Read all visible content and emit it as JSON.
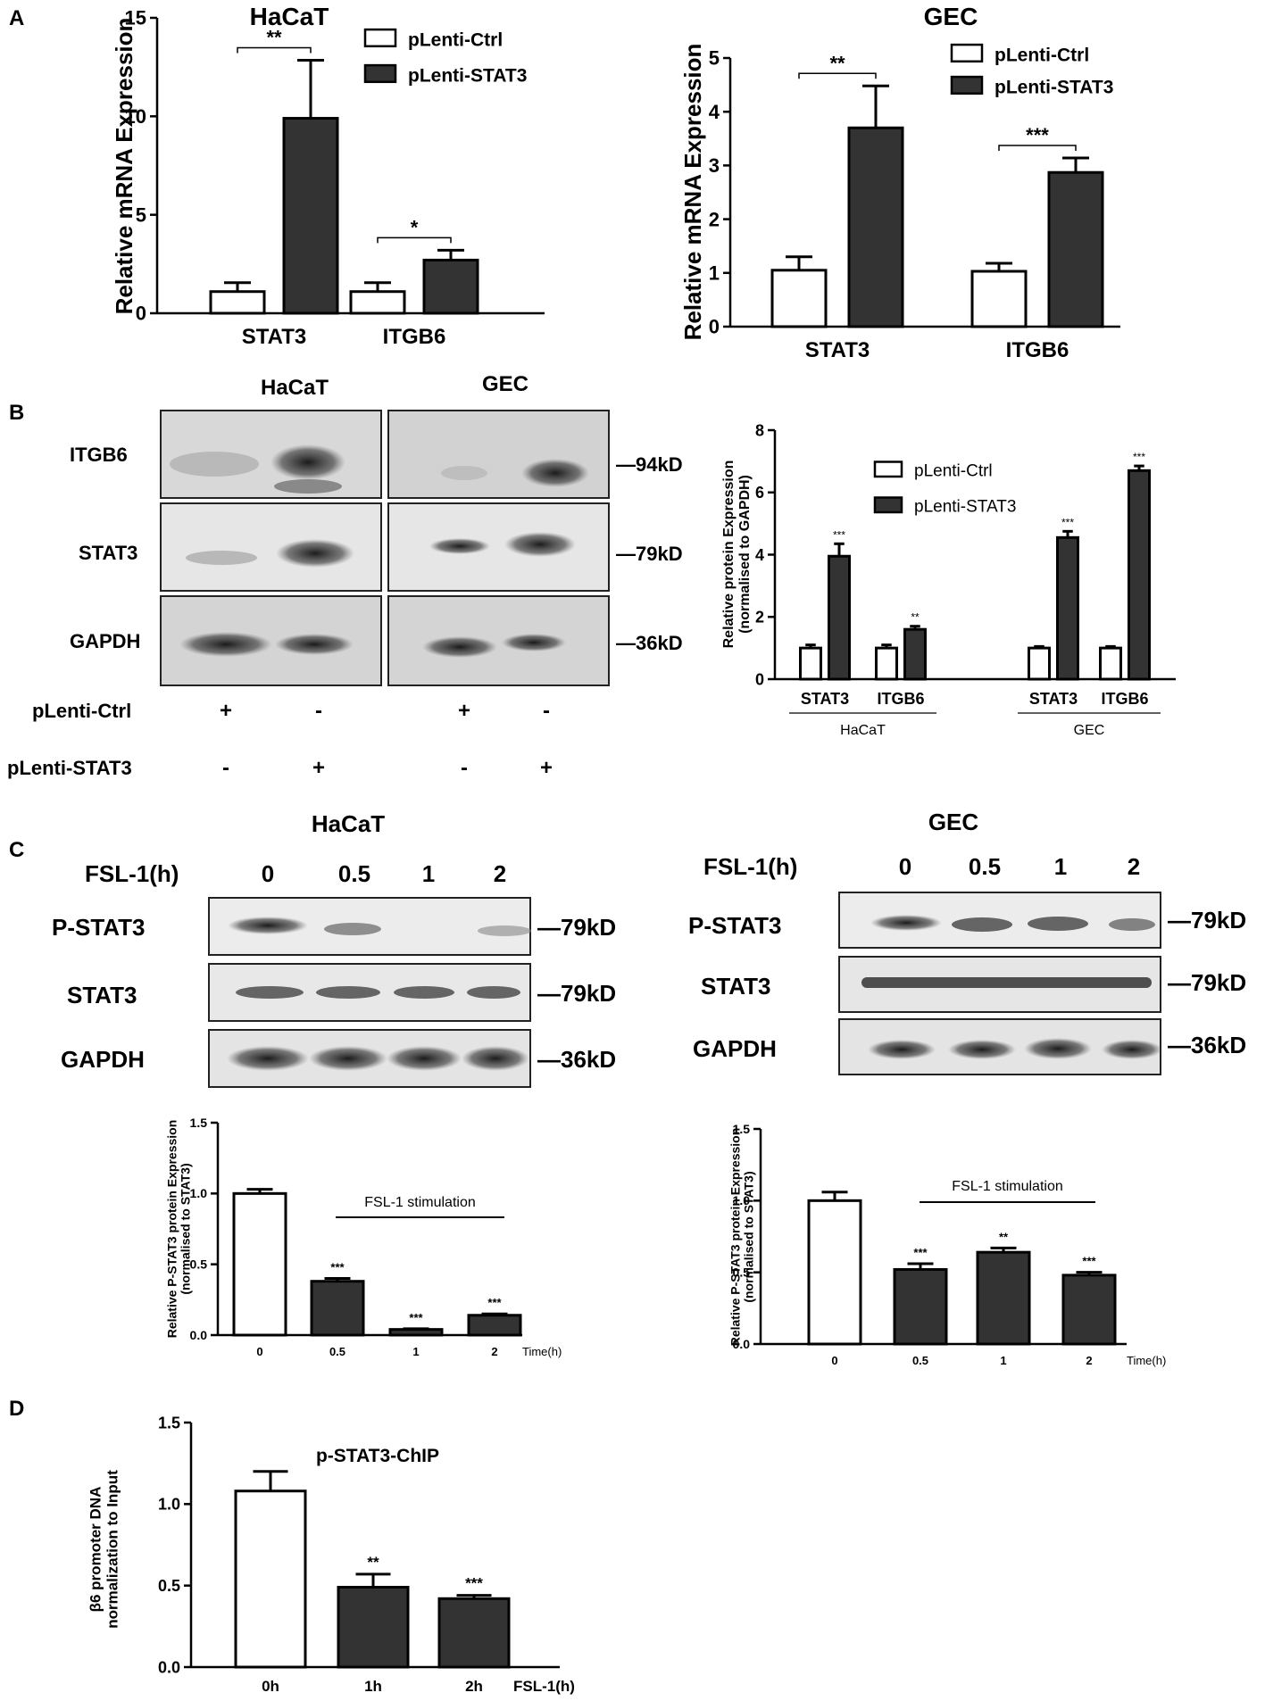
{
  "panel_labels": {
    "A": "A",
    "B": "B",
    "C": "C",
    "D": "D"
  },
  "panel_b": {
    "blot_title_left": "HaCaT",
    "blot_title_right": "GEC",
    "rows": [
      "ITGB6",
      "STAT3",
      "GAPDH"
    ],
    "weights": [
      "—94kD",
      "—79kD",
      "—36kD"
    ],
    "condition_labels": [
      "pLenti-Ctrl",
      "pLenti-STAT3"
    ],
    "ctrl_signs": [
      "+",
      "-",
      "+",
      "-"
    ],
    "stat3_signs": [
      "-",
      "+",
      "-",
      "+"
    ]
  },
  "panel_c": {
    "left": {
      "title": "HaCaT",
      "time_label": "FSL-1(h)",
      "times": [
        "0",
        "0.5",
        "1",
        "2"
      ],
      "rows": [
        "P-STAT3",
        "STAT3",
        "GAPDH"
      ],
      "weights": [
        "—79kD",
        "—79kD",
        "—36kD"
      ]
    },
    "right": {
      "title": "GEC",
      "time_label": "FSL-1(h)",
      "times": [
        "0",
        "0.5",
        "1",
        "2"
      ],
      "rows": [
        "P-STAT3",
        "STAT3",
        "GAPDH"
      ],
      "weights": [
        "—79kD",
        "—79kD",
        "—36kD"
      ]
    }
  },
  "colors": {
    "filled": "#333333",
    "empty": "#ffffff",
    "stroke": "#000000"
  },
  "chart_data": [
    {
      "id": "A-HaCaT",
      "type": "bar",
      "title": "HaCaT",
      "ylabel": "Relative  mRNA Expression",
      "xlabel": "",
      "categories": [
        "STAT3",
        "ITGB6"
      ],
      "series": [
        {
          "name": "pLenti-Ctrl",
          "values": [
            1.1,
            1.1
          ],
          "errors": [
            0.45,
            0.45
          ]
        },
        {
          "name": "pLenti-STAT3",
          "values": [
            9.9,
            2.7
          ],
          "errors": [
            2.95,
            0.5
          ]
        }
      ],
      "significance": [
        "**",
        "*"
      ],
      "ylim": [
        0,
        15
      ],
      "yticks": [
        "0",
        "5",
        "10",
        "15"
      ],
      "legend": "top-right"
    },
    {
      "id": "A-GEC",
      "type": "bar",
      "title": "GEC",
      "ylabel": "Relative  mRNA Expression",
      "xlabel": "",
      "categories": [
        "STAT3",
        "ITGB6"
      ],
      "series": [
        {
          "name": "pLenti-Ctrl",
          "values": [
            1.05,
            1.03
          ],
          "errors": [
            0.25,
            0.15
          ]
        },
        {
          "name": "pLenti-STAT3",
          "values": [
            3.7,
            2.87
          ],
          "errors": [
            0.78,
            0.27
          ]
        }
      ],
      "significance": [
        "**",
        "***"
      ],
      "ylim": [
        0,
        5
      ],
      "yticks": [
        "0",
        "1",
        "2",
        "3",
        "4",
        "5"
      ],
      "legend": "top-right"
    },
    {
      "id": "B-protein",
      "type": "bar",
      "title": "",
      "ylabel": "Relative protein Expression (normalised to GAPDH)",
      "xlabel": "",
      "categories": [
        "STAT3",
        "ITGB6",
        "STAT3",
        "ITGB6"
      ],
      "groups": [
        "HaCaT",
        "GEC"
      ],
      "series": [
        {
          "name": "pLenti-Ctrl",
          "values": [
            1.0,
            1.0,
            1.0,
            1.0
          ],
          "errors": [
            0.1,
            0.1,
            0.05,
            0.05
          ]
        },
        {
          "name": "pLenti-STAT3",
          "values": [
            3.95,
            1.6,
            4.55,
            6.7
          ],
          "errors": [
            0.4,
            0.1,
            0.2,
            0.15
          ]
        }
      ],
      "significance": [
        "***",
        "**",
        "***",
        "***"
      ],
      "ylim": [
        0,
        8
      ],
      "yticks": [
        "0",
        "2",
        "4",
        "6",
        "8"
      ],
      "legend": "top"
    },
    {
      "id": "C-HaCaT",
      "type": "bar",
      "title": "",
      "ylabel": "Relative P-STAT3 protein Expression (normalised to STAT3)",
      "xlabel": "Time(h)",
      "categories": [
        "0",
        "0.5",
        "1",
        "2"
      ],
      "values": [
        1.0,
        0.38,
        0.04,
        0.14
      ],
      "errors": [
        0.03,
        0.02,
        0.005,
        0.01
      ],
      "filled": [
        false,
        true,
        true,
        true
      ],
      "significance": [
        "",
        "***",
        "***",
        "***"
      ],
      "bracket_label": "FSL-1 stimulation",
      "ylim": [
        0,
        1.5
      ],
      "yticks": [
        "0.0",
        "0.5",
        "1.0",
        "1.5"
      ]
    },
    {
      "id": "C-GEC",
      "type": "bar",
      "title": "",
      "ylabel": "Relative P-STAT3 protein Expression (normalised to STAT3)",
      "xlabel": "Time(h)",
      "categories": [
        "0",
        "0.5",
        "1",
        "2"
      ],
      "values": [
        1.0,
        0.52,
        0.64,
        0.48
      ],
      "errors": [
        0.06,
        0.04,
        0.03,
        0.02
      ],
      "filled": [
        false,
        true,
        true,
        true
      ],
      "significance": [
        "",
        "***",
        "**",
        "***"
      ],
      "bracket_label": "FSL-1 stimulation",
      "ylim": [
        0,
        1.5
      ],
      "yticks": [
        "0.0",
        "0.5",
        "1.0",
        "1.5"
      ]
    },
    {
      "id": "D-ChIP",
      "type": "bar",
      "title": "p-STAT3-ChIP",
      "ylabel": "β6 promoter DNA normalization to Input",
      "xlabel": "FSL-1(h)",
      "categories": [
        "0h",
        "1h",
        "2h"
      ],
      "values": [
        1.08,
        0.49,
        0.42
      ],
      "errors": [
        0.12,
        0.08,
        0.02
      ],
      "filled": [
        false,
        true,
        true
      ],
      "significance": [
        "",
        "**",
        "***"
      ],
      "ylim": [
        0,
        1.5
      ],
      "yticks": [
        "0.0",
        "0.5",
        "1.0",
        "1.5"
      ]
    }
  ]
}
